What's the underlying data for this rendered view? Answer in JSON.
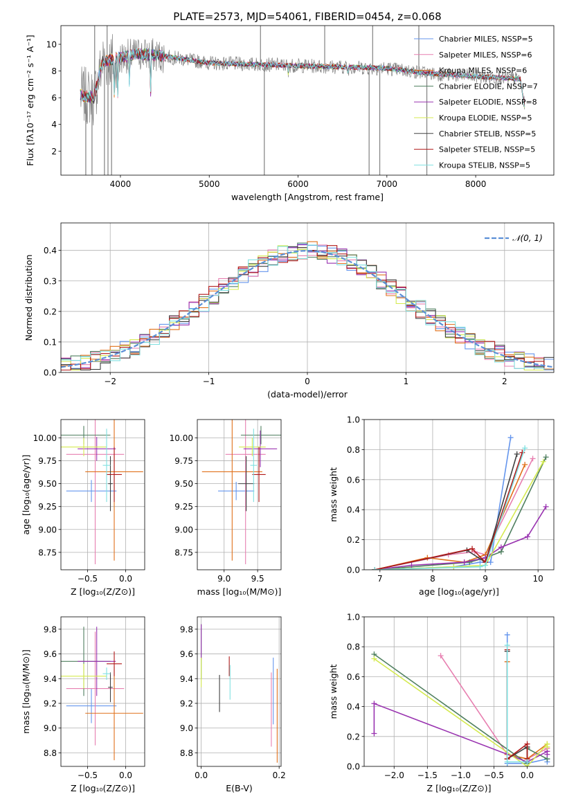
{
  "figure_title": "PLATE=2573, MJD=54061, FIBERID=0454, z=0.068",
  "colors": {
    "Chabrier MILES": "#6495ed",
    "Salpeter MILES": "#e77fb0",
    "Kroupa MILES": "#e0701a",
    "Chabrier ELODIE": "#4f7f5f",
    "Salpeter ELODIE": "#9933b0",
    "Kroupa ELODIE": "#d4ea4f",
    "Chabrier STELIB": "#404040",
    "Salpeter STELIB": "#b01818",
    "Kroupa STELIB": "#7fe0e0",
    "data": "#808080",
    "gauss": "#5b8fd6"
  },
  "chart_data": [
    {
      "type": "line",
      "xlabel": "wavelength [Angstrom, rest frame]",
      "ylabel": "Flux [fλ10⁻¹⁷ erg cm⁻² s⁻¹ A⁻¹]",
      "xlim": [
        3330,
        8880
      ],
      "ylim": [
        0.2,
        11.4
      ],
      "xticks": [
        4000,
        5000,
        6000,
        7000,
        8000
      ],
      "yticks": [
        2,
        4,
        6,
        8,
        10
      ],
      "legend_position": "top-right",
      "legend": [
        "Chabrier MILES, NSSP=5",
        "Salpeter MILES, NSSP=6",
        "Kroupa MILES, NSSP=6",
        "Chabrier ELODIE, NSSP=7",
        "Salpeter ELODIE, NSSP=8",
        "Kroupa ELODIE, NSSP=5",
        "Chabrier STELIB, NSSP=5",
        "Salpeter STELIB, NSSP=5",
        "Kroupa STELIB, NSSP=5"
      ],
      "continuum": [
        [
          3550,
          6.2
        ],
        [
          3700,
          6.0
        ],
        [
          3800,
          8.7
        ],
        [
          4000,
          9.0
        ],
        [
          4200,
          9.3
        ],
        [
          4500,
          9.1
        ],
        [
          5000,
          8.6
        ],
        [
          5500,
          8.5
        ],
        [
          6000,
          8.4
        ],
        [
          6500,
          8.3
        ],
        [
          7000,
          8.2
        ],
        [
          7500,
          7.8
        ],
        [
          8000,
          7.6
        ],
        [
          8500,
          7.4
        ],
        [
          8550,
          5.4
        ]
      ],
      "absorption_lines": [
        [
          3933,
          4.5
        ],
        [
          3968,
          5.0
        ],
        [
          4102,
          6.3
        ],
        [
          4340,
          6.2
        ],
        [
          5890,
          7.8
        ],
        [
          6563,
          7.6
        ]
      ],
      "data_spikes": [
        [
          3610,
          0.2
        ],
        [
          3680,
          0.2
        ],
        [
          3710,
          11.4
        ],
        [
          3820,
          0.2
        ],
        [
          3850,
          11.4
        ],
        [
          3860,
          0.2
        ],
        [
          3900,
          0.2
        ],
        [
          5577,
          11.4
        ],
        [
          5620,
          0.2
        ],
        [
          6300,
          11.4
        ],
        [
          6800,
          0.2
        ],
        [
          6840,
          11.4
        ],
        [
          6920,
          0.2
        ],
        [
          7360,
          11.4
        ],
        [
          7450,
          0.2
        ]
      ]
    },
    {
      "type": "step",
      "xlabel": "(data-model)/error",
      "ylabel": "Normed distribution",
      "xlim": [
        -2.5,
        2.5
      ],
      "ylim": [
        0,
        0.49
      ],
      "xticks": [
        -2,
        -1,
        0,
        1,
        2
      ],
      "yticks": [
        0.0,
        0.1,
        0.2,
        0.3,
        0.4
      ],
      "bin_width": 0.1,
      "legend": [
        "𝒩(0, 1)"
      ],
      "gaussian": {
        "mean": 0,
        "sigma": 1
      }
    },
    {
      "type": "errorbar",
      "xlabel": "Z [log₁₀(Z/Z⊙)]",
      "ylabel": "age  [log₁₀(age/yr)]",
      "xlim": [
        -0.85,
        0.25
      ],
      "ylim": [
        8.56,
        10.2
      ],
      "xticks": [
        -0.5,
        0.0
      ],
      "yticks": [
        8.75,
        9.0,
        9.25,
        9.5,
        9.75,
        10.0
      ],
      "points": [
        {
          "model": "Chabrier MILES",
          "x": -0.45,
          "xerr": 0.33,
          "y": 9.42,
          "yerr": 0.12
        },
        {
          "model": "Salpeter MILES",
          "x": -0.4,
          "xerr": 0.38,
          "y": 9.82,
          "yerr": 1.2
        },
        {
          "model": "Kroupa MILES",
          "x": -0.15,
          "xerr": 0.38,
          "y": 9.63,
          "yerr": 0.97
        },
        {
          "model": "Chabrier ELODIE",
          "x": -0.55,
          "xerr": 0.35,
          "y": 10.03,
          "yerr": 0.1
        },
        {
          "model": "Salpeter ELODIE",
          "x": -0.38,
          "xerr": 0.25,
          "y": 9.88,
          "yerr": 0.13
        },
        {
          "model": "Kroupa ELODIE",
          "x": -0.55,
          "xerr": 0.3,
          "y": 9.9,
          "yerr": 0.1
        },
        {
          "model": "Chabrier STELIB",
          "x": -0.2,
          "xerr": 0.03,
          "y": 9.5,
          "yerr": 0.3
        },
        {
          "model": "Salpeter STELIB",
          "x": -0.15,
          "xerr": 0.1,
          "y": 9.6,
          "yerr": 0.3
        },
        {
          "model": "Kroupa STELIB",
          "x": -0.25,
          "xerr": 0.05,
          "y": 9.7,
          "yerr": 0.4
        }
      ]
    },
    {
      "type": "errorbar",
      "xlabel": "mass [log₁₀(M/M⊙)]",
      "ylabel": "",
      "xlim": [
        8.6,
        9.85
      ],
      "ylim": [
        8.56,
        10.2
      ],
      "xticks": [
        9.0,
        9.5
      ],
      "yticks": [
        8.75,
        9.0,
        9.25,
        9.5,
        9.75,
        10.0
      ],
      "points": [
        {
          "model": "Chabrier MILES",
          "x": 9.18,
          "xerr": 0.27,
          "y": 9.42,
          "yerr": 0.1
        },
        {
          "model": "Salpeter MILES",
          "x": 9.32,
          "xerr": 0.3,
          "y": 9.82,
          "yerr": 1.2
        },
        {
          "model": "Kroupa MILES",
          "x": 9.12,
          "xerr": 0.45,
          "y": 9.63,
          "yerr": 0.97
        },
        {
          "model": "Chabrier ELODIE",
          "x": 9.55,
          "xerr": 0.3,
          "y": 10.03,
          "yerr": 0.1
        },
        {
          "model": "Salpeter ELODIE",
          "x": 9.54,
          "xerr": 0.25,
          "y": 9.88,
          "yerr": 0.2
        },
        {
          "model": "Kroupa ELODIE",
          "x": 9.42,
          "xerr": 0.2,
          "y": 9.9,
          "yerr": 0.1
        },
        {
          "model": "Chabrier STELIB",
          "x": 9.33,
          "xerr": 0.12,
          "y": 9.5,
          "yerr": 0.3
        },
        {
          "model": "Salpeter STELIB",
          "x": 9.52,
          "xerr": 0.1,
          "y": 9.6,
          "yerr": 0.3
        },
        {
          "model": "Kroupa STELIB",
          "x": 9.44,
          "xerr": 0.05,
          "y": 9.7,
          "yerr": 0.4
        }
      ]
    },
    {
      "type": "line",
      "xlabel": "age  [log₁₀(age/yr)]",
      "ylabel": "mass weight",
      "xlim": [
        6.7,
        10.3
      ],
      "ylim": [
        0,
        1.0
      ],
      "xticks": [
        7,
        8,
        9,
        10
      ],
      "yticks": [
        0.0,
        0.2,
        0.4,
        0.6,
        0.8,
        1.0
      ],
      "series": [
        {
          "model": "Chabrier MILES",
          "x": [
            6.9,
            8.4,
            8.9,
            9.1,
            9.48
          ],
          "y": [
            0.0,
            0.02,
            0.05,
            0.05,
            0.88
          ]
        },
        {
          "model": "Salpeter MILES",
          "x": [
            6.9,
            8.3,
            8.8,
            9.0,
            9.9
          ],
          "y": [
            0.0,
            0.1,
            0.12,
            0.1,
            0.74
          ]
        },
        {
          "model": "Kroupa MILES",
          "x": [
            6.9,
            7.9,
            8.6,
            9.0,
            9.75
          ],
          "y": [
            0.0,
            0.08,
            0.05,
            0.1,
            0.7
          ]
        },
        {
          "model": "Chabrier ELODIE",
          "x": [
            6.9,
            8.7,
            9.0,
            9.3,
            10.15
          ],
          "y": [
            0.0,
            0.05,
            0.08,
            0.12,
            0.75
          ]
        },
        {
          "model": "Salpeter ELODIE",
          "x": [
            6.9,
            7.6,
            8.6,
            9.0,
            9.3,
            9.8,
            10.15
          ],
          "y": [
            0.0,
            0.03,
            0.05,
            0.08,
            0.15,
            0.22,
            0.42
          ]
        },
        {
          "model": "Kroupa ELODIE",
          "x": [
            6.9,
            8.4,
            9.0,
            10.1
          ],
          "y": [
            0.0,
            0.02,
            0.03,
            0.72
          ]
        },
        {
          "model": "Chabrier STELIB",
          "x": [
            6.9,
            8.65,
            9.0,
            9.6
          ],
          "y": [
            0.0,
            0.13,
            0.05,
            0.77
          ]
        },
        {
          "model": "Salpeter STELIB",
          "x": [
            6.9,
            8.75,
            9.0,
            9.7
          ],
          "y": [
            0.0,
            0.14,
            0.05,
            0.78
          ]
        },
        {
          "model": "Kroupa STELIB",
          "x": [
            6.9,
            8.9,
            9.0,
            9.75
          ],
          "y": [
            0.0,
            0.02,
            0.03,
            0.81
          ]
        }
      ]
    },
    {
      "type": "errorbar",
      "xlabel": "Z [log₁₀(Z/Z⊙)]",
      "ylabel": "mass [log₁₀(M/M⊙)]",
      "xlim": [
        -0.85,
        0.25
      ],
      "ylim": [
        8.69,
        9.9
      ],
      "xticks": [
        -0.5,
        0.0
      ],
      "yticks": [
        8.8,
        9.0,
        9.2,
        9.4,
        9.6,
        9.8
      ],
      "points": [
        {
          "model": "Chabrier MILES",
          "x": -0.45,
          "xerr": 0.33,
          "y": 9.18,
          "yerr": 0.14
        },
        {
          "model": "Salpeter MILES",
          "x": -0.4,
          "xerr": 0.38,
          "y": 9.32,
          "yerr": 0.46
        },
        {
          "model": "Kroupa MILES",
          "x": -0.15,
          "xerr": 0.38,
          "y": 9.12,
          "yerr": 0.38
        },
        {
          "model": "Chabrier ELODIE",
          "x": -0.55,
          "xerr": 0.35,
          "y": 9.54,
          "yerr": 0.28
        },
        {
          "model": "Salpeter ELODIE",
          "x": -0.38,
          "xerr": 0.25,
          "y": 9.54,
          "yerr": 0.28
        },
        {
          "model": "Kroupa ELODIE",
          "x": -0.55,
          "xerr": 0.3,
          "y": 9.42,
          "yerr": 0.1
        },
        {
          "model": "Chabrier STELIB",
          "x": -0.2,
          "xerr": 0.03,
          "y": 9.33,
          "yerr": 0.12
        },
        {
          "model": "Salpeter STELIB",
          "x": -0.15,
          "xerr": 0.1,
          "y": 9.52,
          "yerr": 0.1
        },
        {
          "model": "Kroupa STELIB",
          "x": -0.25,
          "xerr": 0.05,
          "y": 9.44,
          "yerr": 0.05
        }
      ]
    },
    {
      "type": "errorbar",
      "xlabel": "E(B-V)",
      "ylabel": "",
      "xlim": [
        -0.01,
        0.205
      ],
      "ylim": [
        8.69,
        9.9
      ],
      "xticks": [
        0.0,
        0.2
      ],
      "yticks": [
        8.8,
        9.0,
        9.2,
        9.4,
        9.6,
        9.8
      ],
      "points": [
        {
          "model": "Chabrier MILES",
          "x": 0.185,
          "xerr": 0,
          "y": 9.3,
          "yerr": 0.27
        },
        {
          "model": "Salpeter MILES",
          "x": 0.18,
          "xerr": 0,
          "y": 9.15,
          "yerr": 0.3
        },
        {
          "model": "Kroupa MILES",
          "x": 0.195,
          "xerr": 0,
          "y": 9.1,
          "yerr": 0.38
        },
        {
          "model": "Chabrier ELODIE",
          "x": 0.0,
          "xerr": 0,
          "y": 9.62,
          "yerr": 0.22
        },
        {
          "model": "Salpeter ELODIE",
          "x": 0.0,
          "xerr": 0,
          "y": 9.7,
          "yerr": 0.14
        },
        {
          "model": "Kroupa ELODIE",
          "x": 0.0,
          "xerr": 0,
          "y": 9.45,
          "yerr": 0.12
        },
        {
          "model": "Chabrier STELIB",
          "x": 0.047,
          "xerr": 0,
          "y": 9.28,
          "yerr": 0.15
        },
        {
          "model": "Salpeter STELIB",
          "x": 0.072,
          "xerr": 0,
          "y": 9.5,
          "yerr": 0.08
        },
        {
          "model": "Kroupa STELIB",
          "x": 0.074,
          "xerr": 0,
          "y": 9.37,
          "yerr": 0.14
        }
      ]
    },
    {
      "type": "line",
      "xlabel": "Z [log₁₀(Z/Z⊙)]",
      "ylabel": "mass weight",
      "xlim": [
        -2.45,
        0.4
      ],
      "ylim": [
        0,
        1.0
      ],
      "xticks": [
        -2.0,
        -1.5,
        -1.0,
        -0.5,
        0.0
      ],
      "yticks": [
        0.0,
        0.2,
        0.4,
        0.6,
        0.8,
        1.0
      ],
      "series": [
        {
          "model": "Chabrier MILES",
          "x": [
            -0.3,
            -0.3,
            0.0,
            0.3,
            0.3
          ],
          "y": [
            0.88,
            0.02,
            0.02,
            0.05,
            0.03
          ]
        },
        {
          "model": "Salpeter MILES",
          "x": [
            -1.3,
            -0.3,
            0.0,
            0.3,
            0.3
          ],
          "y": [
            0.74,
            0.08,
            0.05,
            0.12,
            0.1
          ]
        },
        {
          "model": "Kroupa MILES",
          "x": [
            -0.3,
            -0.3,
            0.0,
            0.3
          ],
          "y": [
            0.7,
            0.08,
            0.05,
            0.15
          ]
        },
        {
          "model": "Chabrier ELODIE",
          "x": [
            -2.3,
            0.0,
            0.0,
            0.3
          ],
          "y": [
            0.75,
            0.02,
            0.12,
            0.05
          ]
        },
        {
          "model": "Salpeter ELODIE",
          "x": [
            -2.3,
            -2.3,
            0.0,
            0.3,
            0.3
          ],
          "y": [
            0.22,
            0.42,
            0.03,
            0.1,
            0.08
          ]
        },
        {
          "model": "Kroupa ELODIE",
          "x": [
            -2.3,
            0.0,
            0.3,
            0.3
          ],
          "y": [
            0.72,
            0.0,
            0.15,
            0.13
          ]
        },
        {
          "model": "Chabrier STELIB",
          "x": [
            -0.3,
            -0.3,
            0.0,
            0.0
          ],
          "y": [
            0.77,
            0.05,
            0.13,
            0.05
          ]
        },
        {
          "model": "Salpeter STELIB",
          "x": [
            -0.3,
            -0.3,
            0.0,
            0.0
          ],
          "y": [
            0.78,
            0.05,
            0.15,
            0.05
          ]
        },
        {
          "model": "Kroupa STELIB",
          "x": [
            -0.3,
            -0.3,
            0.0
          ],
          "y": [
            0.81,
            0.03,
            0.03
          ]
        }
      ]
    }
  ]
}
